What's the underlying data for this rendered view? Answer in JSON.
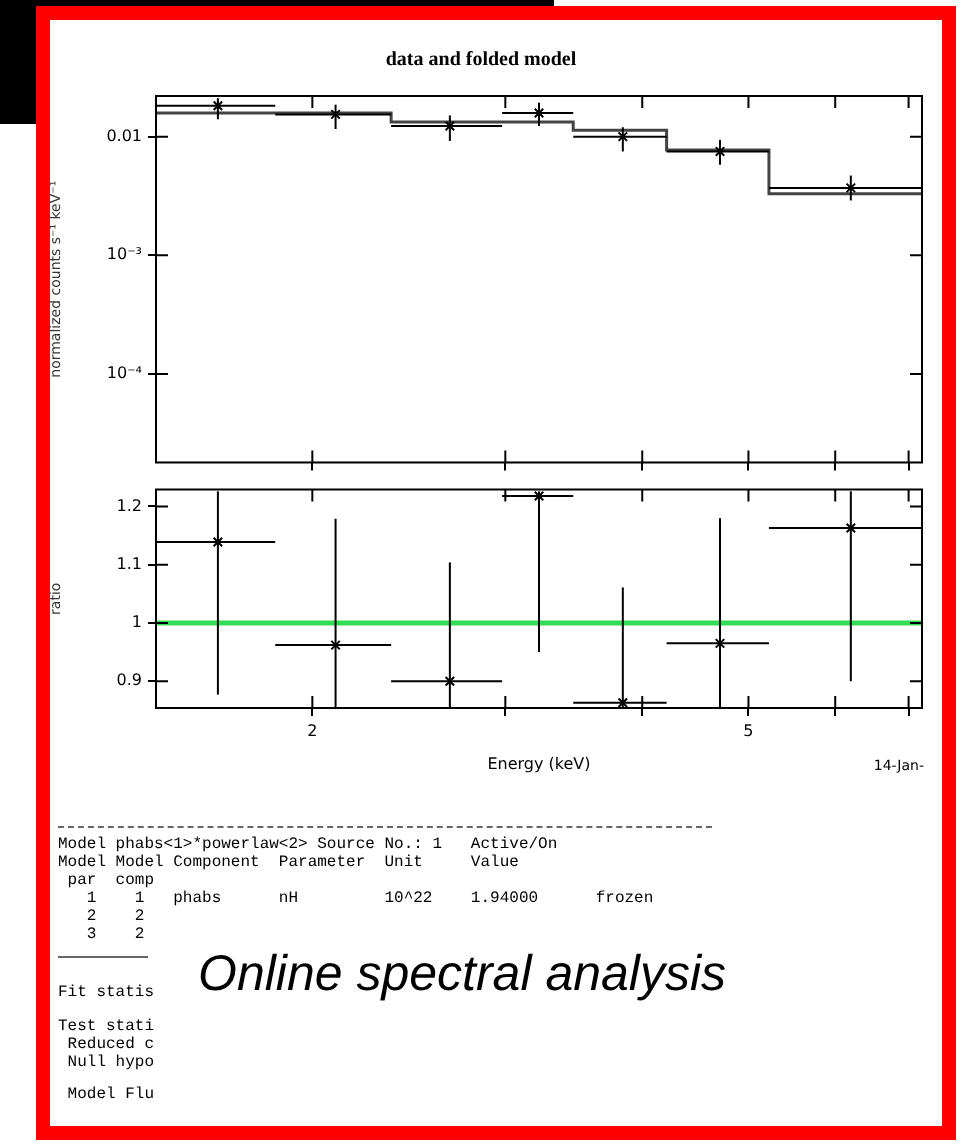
{
  "chart_data": [
    {
      "type": "scatter",
      "title": "data and folded model",
      "ylabel": "normalized counts s⁻¹ keV⁻¹",
      "log": "xy",
      "xlim": [
        1.44,
        7.2
      ],
      "xticks": [
        {
          "value": 2,
          "label": null
        },
        {
          "value": 3,
          "label": null
        },
        {
          "value": 4,
          "label": null
        },
        {
          "value": 5,
          "label": null
        },
        {
          "value": 6,
          "label": null
        },
        {
          "value": 7,
          "label": null
        }
      ],
      "ylim": [
        1.8e-05,
        0.022
      ],
      "yticks": [
        0.01,
        {
          "value": 0.001,
          "label": "10⁻³"
        },
        {
          "value": 0.0001,
          "label": "10⁻⁴"
        }
      ],
      "tick_labels": "y",
      "grid": false,
      "series": [
        {
          "marker": "cross",
          "color": "#000000",
          "x": [
            1.64,
            2.1,
            2.67,
            3.22,
            3.84,
            4.71,
            6.2
          ],
          "values": [
            0.0182,
            0.0154,
            0.0123,
            0.0158,
            0.01,
            0.0075,
            0.0037
          ],
          "xerrors": [
            [
              1.44,
              1.85
            ],
            [
              1.85,
              2.36
            ],
            [
              2.36,
              2.98
            ],
            [
              2.98,
              3.46
            ],
            [
              3.46,
              4.21
            ],
            [
              4.21,
              5.22
            ],
            [
              5.22,
              7.2
            ]
          ],
          "errors": [
            [
              0.014,
              0.0211
            ],
            [
              0.0116,
              0.0186
            ],
            [
              0.0092,
              0.0151
            ],
            [
              0.0123,
              0.0193
            ],
            [
              0.0075,
              0.012
            ],
            [
              0.0058,
              0.0094
            ],
            [
              0.0029,
              0.0047
            ]
          ]
        },
        {
          "type": "step",
          "color": "#444444",
          "x": [
            1.44,
            1.85,
            2.36,
            2.98,
            3.46,
            4.21,
            5.22,
            7.2
          ],
          "values": [
            0.0158,
            0.0158,
            0.0133,
            0.0133,
            0.0113,
            0.0077,
            0.0033,
            0.0033
          ]
        }
      ]
    },
    {
      "type": "scatter",
      "xlabel": "Energy (keV)",
      "ylabel": "ratio",
      "log": "x",
      "xlim": [
        1.44,
        7.2
      ],
      "xticks": [
        2,
        {
          "value": 3,
          "label": null
        },
        {
          "value": 4,
          "label": null
        },
        5,
        {
          "value": 6,
          "label": null
        },
        {
          "value": 7,
          "label": null
        }
      ],
      "ylim": [
        0.854,
        1.229
      ],
      "yticks": [
        0.9,
        1,
        1.1,
        1.2
      ],
      "grid": false,
      "marker": "cross",
      "ref_lines": [
        {
          "axis": "y",
          "value": 1,
          "color": "#33dd55"
        }
      ],
      "annotations": [
        "14-Jan-"
      ],
      "series": [
        {
          "color": "#000000",
          "x": [
            1.64,
            2.1,
            2.67,
            3.22,
            3.84,
            4.71,
            6.2
          ],
          "values": [
            1.139,
            0.962,
            0.9,
            1.218,
            0.863,
            0.965,
            1.163
          ],
          "xerrors": [
            [
              1.44,
              1.85
            ],
            [
              1.85,
              2.36
            ],
            [
              2.36,
              2.98
            ],
            [
              2.98,
              3.46
            ],
            [
              3.46,
              4.21
            ],
            [
              4.21,
              5.22
            ],
            [
              5.22,
              7.2
            ]
          ],
          "errors": [
            [
              0.877,
              1.226
            ],
            [
              0.855,
              1.179
            ],
            [
              0.855,
              1.104
            ],
            [
              0.95,
              1.226
            ],
            [
              0.855,
              1.061
            ],
            [
              0.855,
              1.18
            ],
            [
              0.9,
              1.226
            ]
          ]
        }
      ]
    },
    {
      "type": "other",
      "annotations": [
        "Model phabs<1>*powerlaw<2> Source No.: 1   Active/On",
        "Model Model Component  Parameter  Unit     Value",
        " par  comp",
        "   1    1   phabs      nH         10^22    1.94000      frozen",
        "   2    2",
        "   3    2",
        "Fit statis",
        "Test stati",
        " Reduced c",
        " Null hypo",
        " Model Flu",
        "Online spectral analysis"
      ]
    }
  ]
}
